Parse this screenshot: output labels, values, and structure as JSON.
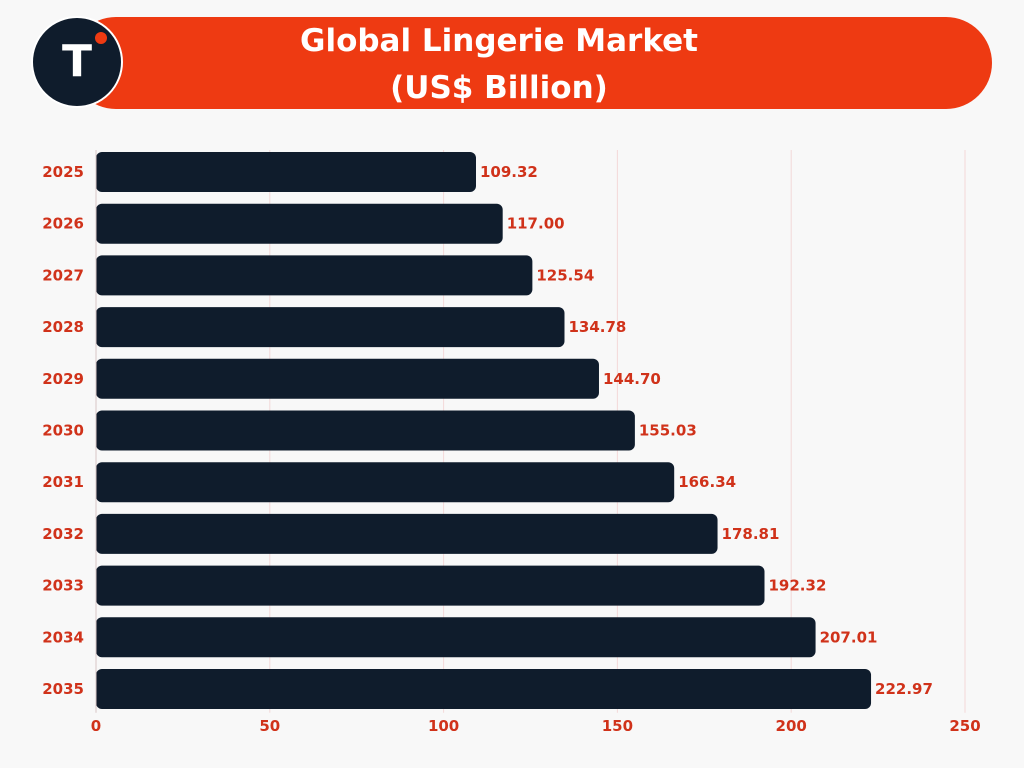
{
  "header": {
    "title_line1": "Global Lingerie Market",
    "title_line2": "(US$ Billion)",
    "logo_letter": "T"
  },
  "colors": {
    "accent": "#ee3a12",
    "bar": "#0f1c2c",
    "label": "#d0321a",
    "grid": "#f3d9d9",
    "background": "#f8f8f8"
  },
  "chart_data": {
    "type": "bar",
    "orientation": "horizontal",
    "title": "Global Lingerie Market (US$ Billion)",
    "categories": [
      "2025",
      "2026",
      "2027",
      "2028",
      "2029",
      "2030",
      "2031",
      "2032",
      "2033",
      "2034",
      "2035"
    ],
    "values": [
      109.32,
      117.0,
      125.54,
      134.78,
      144.7,
      155.03,
      166.34,
      178.81,
      192.32,
      207.01,
      222.97
    ],
    "value_labels": [
      "109.32",
      "117.00",
      "125.54",
      "134.78",
      "144.70",
      "155.03",
      "166.34",
      "178.81",
      "192.32",
      "207.01",
      "222.97"
    ],
    "xlim": [
      0,
      250
    ],
    "xticks": [
      0,
      50,
      100,
      150,
      200,
      250
    ],
    "xlabel": "",
    "ylabel": "",
    "grid": true
  }
}
